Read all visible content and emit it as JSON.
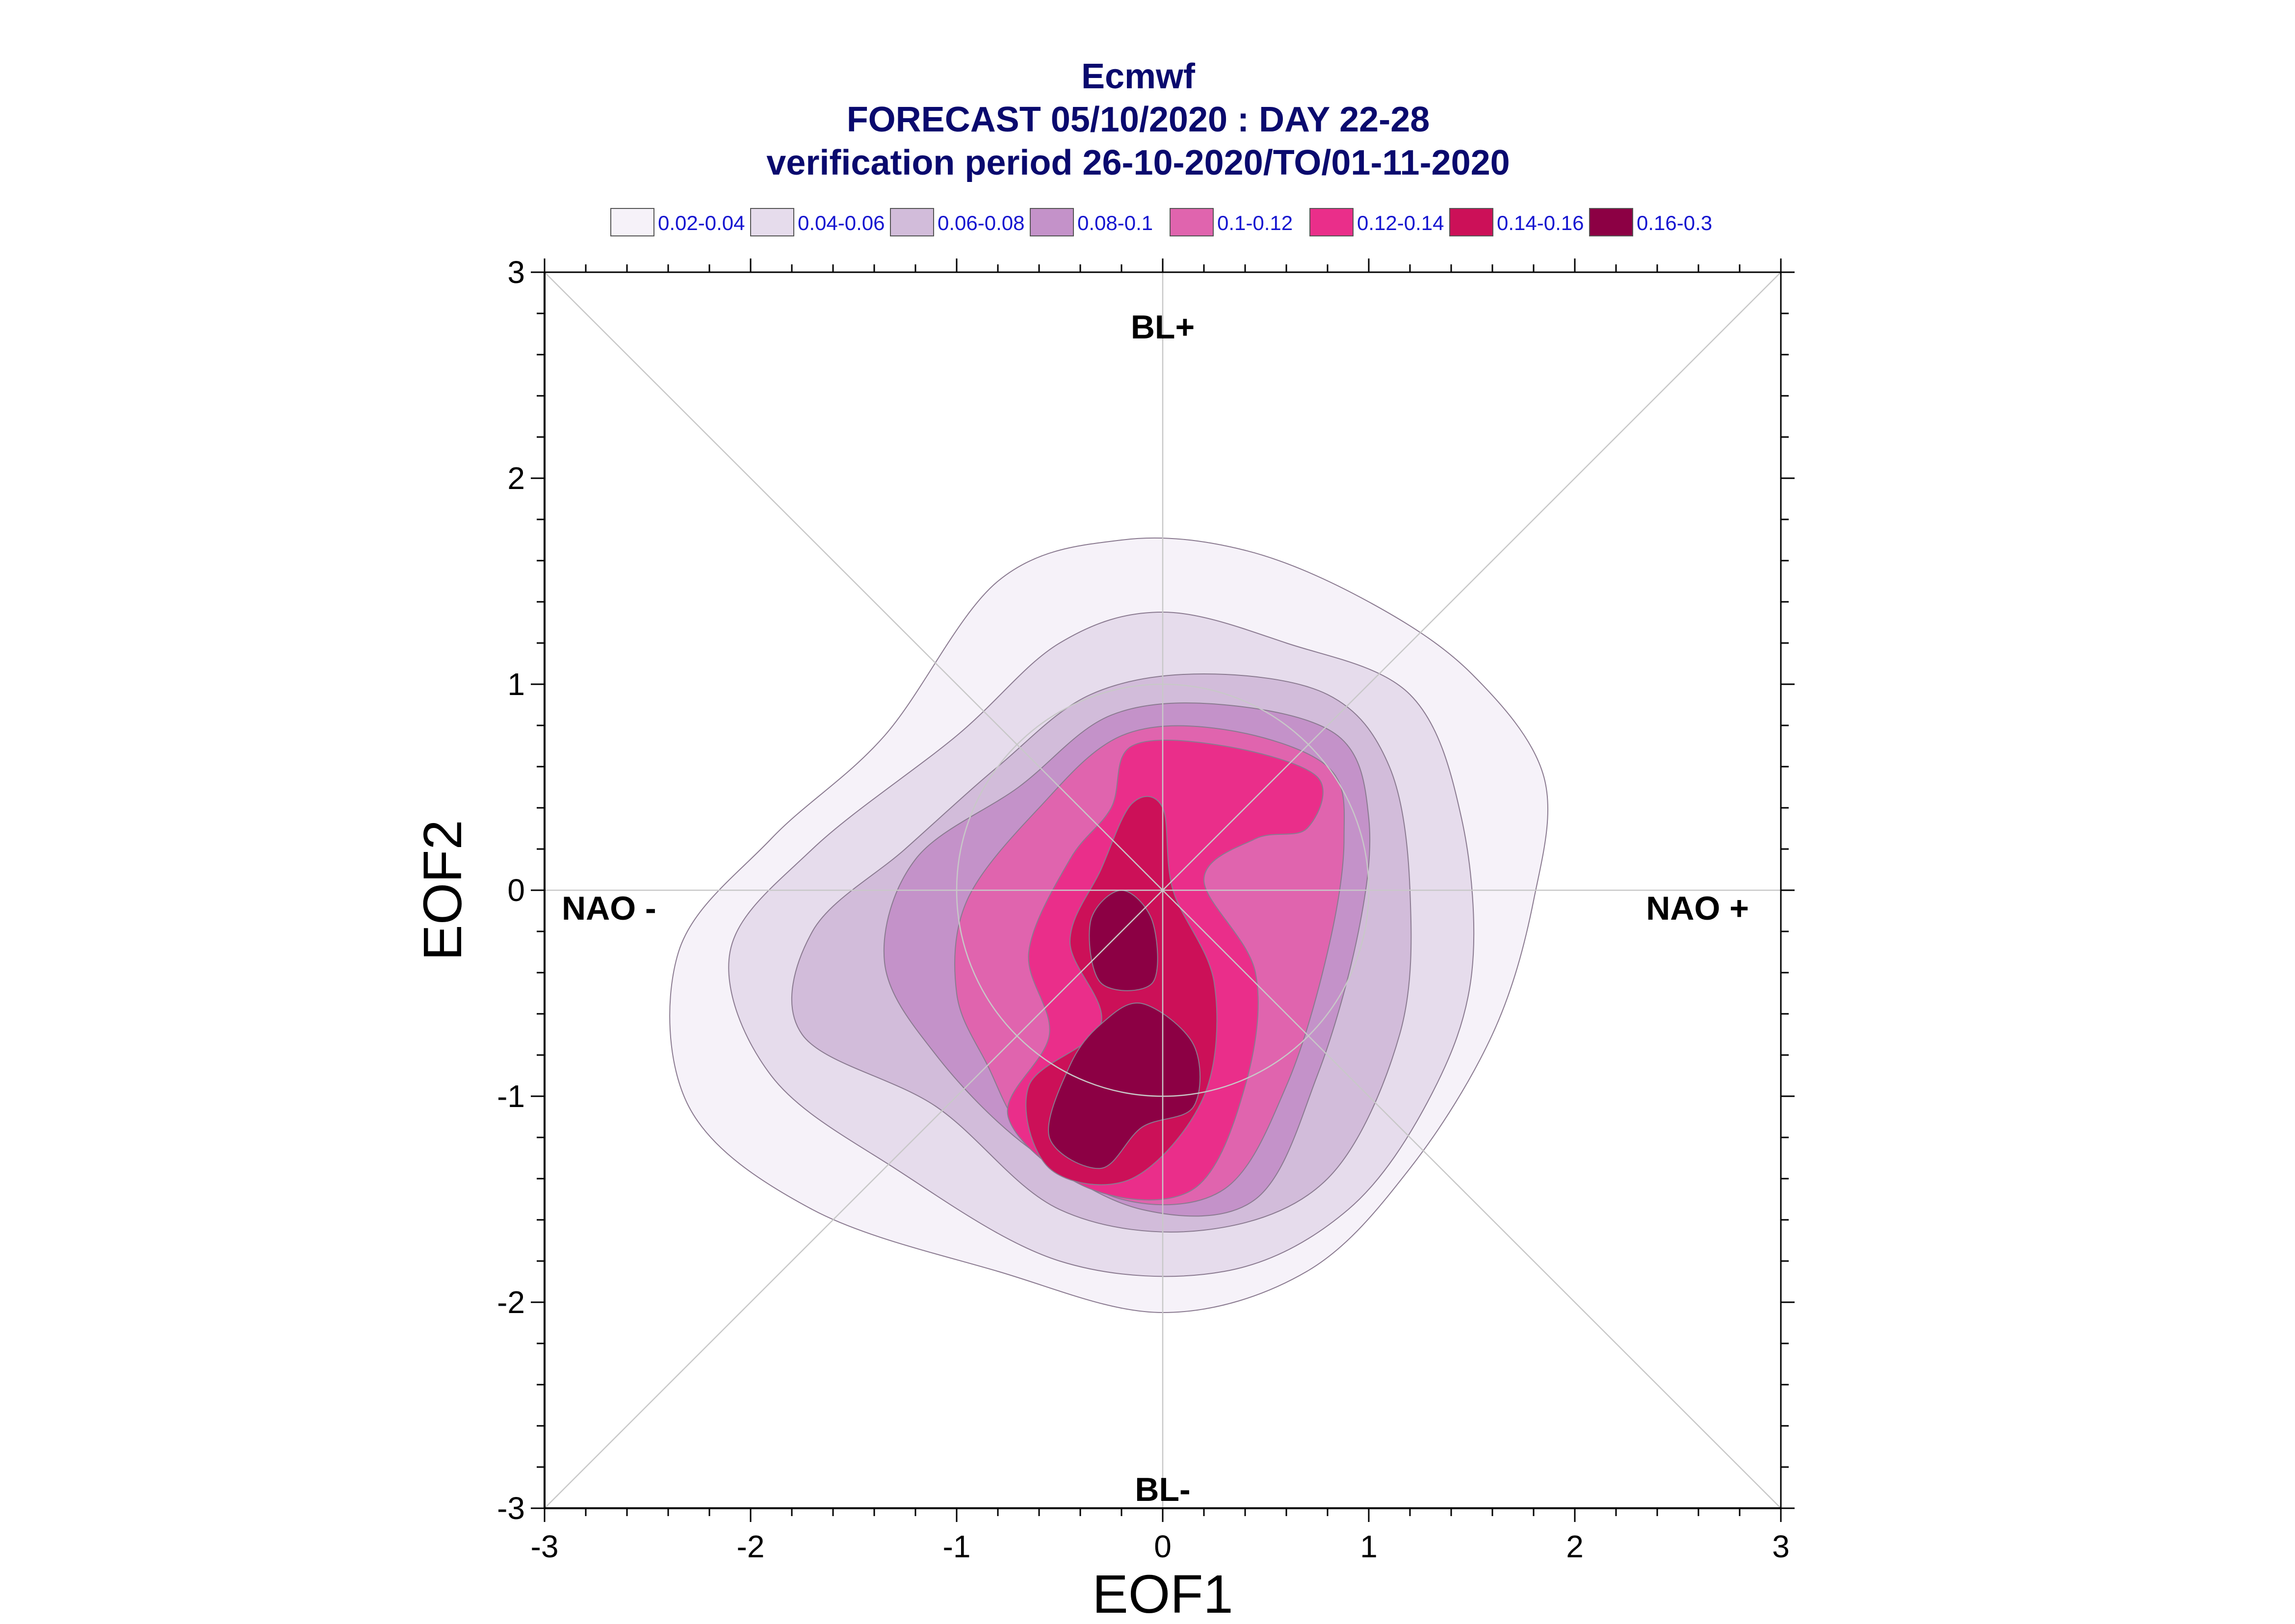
{
  "chart_data": {
    "type": "contour",
    "title": [
      "Ecmwf",
      "FORECAST 05/10/2020 : DAY 22-28",
      "verification period 26-10-2020/TO/01-11-2020"
    ],
    "xlabel": "EOF1",
    "ylabel": "EOF2",
    "xlim": [
      -3,
      3
    ],
    "ylim": [
      -3,
      3
    ],
    "xticks": [
      "-3",
      "-2",
      "-1",
      "0",
      "1",
      "2",
      "3"
    ],
    "yticks": [
      "-3",
      "-2",
      "-1",
      "0",
      "1",
      "2",
      "3"
    ],
    "regime_labels": {
      "top": "BL+",
      "bottom": "BL-",
      "left": "NAO -",
      "right": "NAO +"
    },
    "legend": [
      {
        "label": "0.02-0.04",
        "color": "#f6f2f9"
      },
      {
        "label": "0.04-0.06",
        "color": "#e6dcec"
      },
      {
        "label": "0.06-0.08",
        "color": "#d2bcda"
      },
      {
        "label": "0.08-0.1",
        "color": "#c492c9"
      },
      {
        "label": "0.1-0.12",
        "color": "#e064ae"
      },
      {
        "label": "0.12-0.14",
        "color": "#ea2e8a"
      },
      {
        "label": "0.14-0.16",
        "color": "#cc1058"
      },
      {
        "label": "0.16-0.3",
        "color": "#8c0044"
      }
    ],
    "contours": [
      {
        "level": "0.02-0.04",
        "points": [
          [
            -0.8,
            1.5
          ],
          [
            -0.2,
            1.7
          ],
          [
            0.4,
            1.65
          ],
          [
            1.0,
            1.4
          ],
          [
            1.5,
            1.05
          ],
          [
            1.85,
            0.55
          ],
          [
            1.8,
            -0.05
          ],
          [
            1.6,
            -0.7
          ],
          [
            1.2,
            -1.35
          ],
          [
            0.7,
            -1.85
          ],
          [
            0.0,
            -2.05
          ],
          [
            -0.8,
            -1.85
          ],
          [
            -1.7,
            -1.55
          ],
          [
            -2.3,
            -1.05
          ],
          [
            -2.35,
            -0.3
          ],
          [
            -1.9,
            0.25
          ],
          [
            -1.35,
            0.75
          ]
        ]
      },
      {
        "level": "0.04-0.06",
        "points": [
          [
            -0.5,
            1.2
          ],
          [
            0.0,
            1.35
          ],
          [
            0.6,
            1.2
          ],
          [
            1.2,
            0.95
          ],
          [
            1.45,
            0.35
          ],
          [
            1.5,
            -0.4
          ],
          [
            1.3,
            -1.0
          ],
          [
            0.9,
            -1.55
          ],
          [
            0.3,
            -1.85
          ],
          [
            -0.5,
            -1.8
          ],
          [
            -1.3,
            -1.35
          ],
          [
            -1.9,
            -0.9
          ],
          [
            -2.1,
            -0.3
          ],
          [
            -1.7,
            0.2
          ],
          [
            -1.0,
            0.75
          ]
        ]
      },
      {
        "level": "0.06-0.08",
        "points": [
          [
            -0.35,
            0.95
          ],
          [
            0.2,
            1.05
          ],
          [
            0.8,
            0.95
          ],
          [
            1.1,
            0.6
          ],
          [
            1.2,
            0.0
          ],
          [
            1.15,
            -0.7
          ],
          [
            0.8,
            -1.4
          ],
          [
            0.2,
            -1.65
          ],
          [
            -0.5,
            -1.55
          ],
          [
            -1.1,
            -1.05
          ],
          [
            -1.75,
            -0.7
          ],
          [
            -1.7,
            -0.2
          ],
          [
            -1.25,
            0.2
          ],
          [
            -0.8,
            0.6
          ]
        ]
      },
      {
        "level": "0.08-0.1",
        "points": [
          [
            -0.25,
            0.85
          ],
          [
            0.3,
            0.9
          ],
          [
            0.85,
            0.75
          ],
          [
            1.0,
            0.35
          ],
          [
            0.95,
            -0.2
          ],
          [
            0.75,
            -0.9
          ],
          [
            0.45,
            -1.5
          ],
          [
            -0.1,
            -1.55
          ],
          [
            -0.65,
            -1.25
          ],
          [
            -1.1,
            -0.8
          ],
          [
            -1.35,
            -0.35
          ],
          [
            -1.2,
            0.15
          ],
          [
            -0.7,
            0.5
          ]
        ]
      },
      {
        "level": "0.1-0.12",
        "points": [
          [
            -0.2,
            0.75
          ],
          [
            0.3,
            0.78
          ],
          [
            0.8,
            0.6
          ],
          [
            0.88,
            0.25
          ],
          [
            0.8,
            -0.3
          ],
          [
            0.6,
            -0.95
          ],
          [
            0.3,
            -1.45
          ],
          [
            -0.2,
            -1.5
          ],
          [
            -0.65,
            -1.2
          ],
          [
            -0.85,
            -0.85
          ],
          [
            -1.0,
            -0.5
          ],
          [
            -0.95,
            -0.05
          ],
          [
            -0.6,
            0.4
          ]
        ]
      },
      {
        "level": "0.12-0.14",
        "points": [
          [
            -0.15,
            0.7
          ],
          [
            0.3,
            0.7
          ],
          [
            0.75,
            0.55
          ],
          [
            0.7,
            0.3
          ],
          [
            0.45,
            0.25
          ],
          [
            0.2,
            0.05
          ],
          [
            0.45,
            -0.4
          ],
          [
            0.4,
            -0.95
          ],
          [
            0.15,
            -1.45
          ],
          [
            -0.35,
            -1.45
          ],
          [
            -0.75,
            -1.1
          ],
          [
            -0.55,
            -0.7
          ],
          [
            -0.65,
            -0.3
          ],
          [
            -0.45,
            0.15
          ],
          [
            -0.25,
            0.4
          ]
        ]
      },
      {
        "level": "0.14-0.16",
        "points": [
          [
            -0.15,
            0.42
          ],
          [
            0.0,
            0.4
          ],
          [
            0.05,
            0.0
          ],
          [
            0.25,
            -0.45
          ],
          [
            0.2,
            -1.0
          ],
          [
            -0.15,
            -1.4
          ],
          [
            -0.55,
            -1.35
          ],
          [
            -0.65,
            -0.95
          ],
          [
            -0.3,
            -0.65
          ],
          [
            -0.45,
            -0.25
          ],
          [
            -0.3,
            0.1
          ]
        ]
      },
      {
        "level": "0.16-0.3",
        "points": [
          [
            -0.2,
            0.0
          ],
          [
            -0.05,
            -0.15
          ],
          [
            -0.05,
            -0.45
          ],
          [
            -0.3,
            -0.45
          ],
          [
            -0.35,
            -0.15
          ]
        ]
      },
      {
        "level": "0.16-0.3",
        "points": [
          [
            -0.1,
            -0.55
          ],
          [
            0.15,
            -0.75
          ],
          [
            0.15,
            -1.05
          ],
          [
            -0.1,
            -1.15
          ],
          [
            -0.3,
            -1.35
          ],
          [
            -0.55,
            -1.2
          ],
          [
            -0.45,
            -0.85
          ],
          [
            -0.3,
            -0.65
          ]
        ]
      }
    ]
  }
}
